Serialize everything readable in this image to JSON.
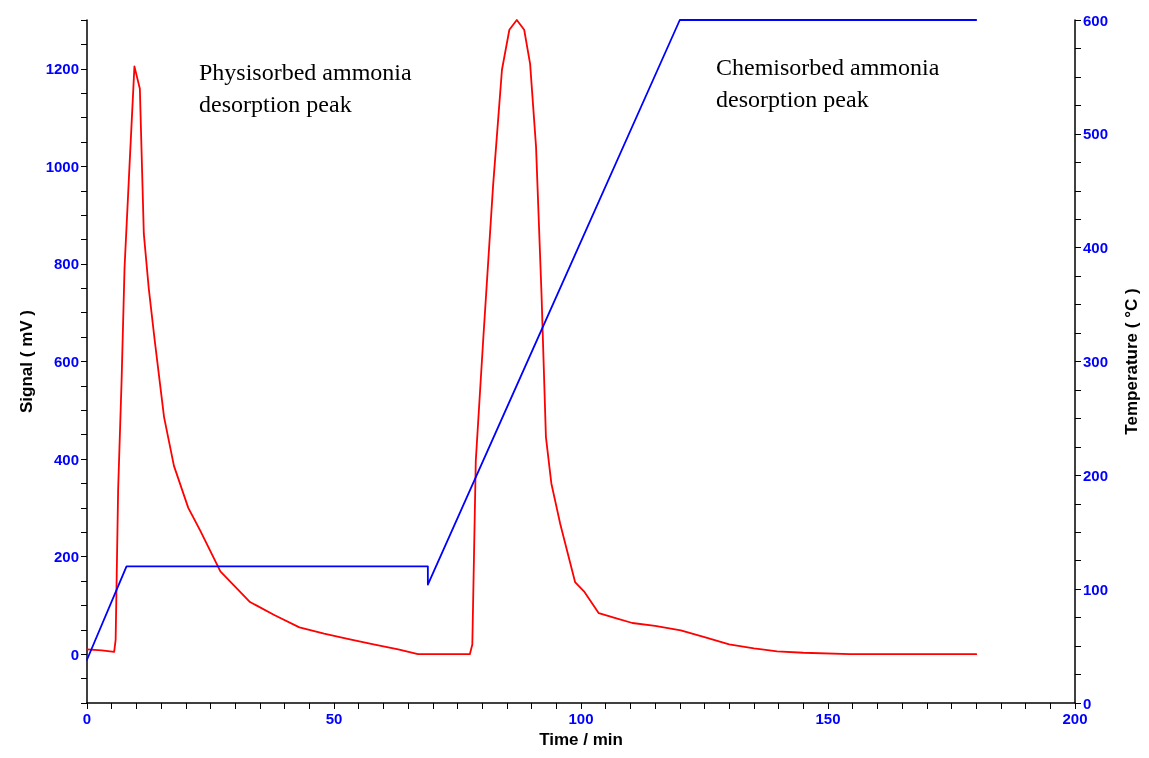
{
  "chart_data": {
    "type": "line",
    "xlabel": "Time / min",
    "ylabel": "Signal ( mV )",
    "y2label": "Temperature ( °C )",
    "xlim": [
      0,
      200
    ],
    "ylim": [
      -100,
      1300
    ],
    "y2lim": [
      0,
      600
    ],
    "xticks": [
      0,
      {
        "value": 5,
        "label": null
      },
      {
        "value": 10,
        "label": null
      },
      {
        "value": 15,
        "label": null
      },
      {
        "value": 20,
        "label": null
      },
      {
        "value": 25,
        "label": null
      },
      {
        "value": 30,
        "label": null
      },
      {
        "value": 35,
        "label": null
      },
      {
        "value": 40,
        "label": null
      },
      {
        "value": 45,
        "label": null
      },
      50,
      {
        "value": 55,
        "label": null
      },
      {
        "value": 60,
        "label": null
      },
      {
        "value": 65,
        "label": null
      },
      {
        "value": 70,
        "label": null
      },
      {
        "value": 75,
        "label": null
      },
      {
        "value": 80,
        "label": null
      },
      {
        "value": 85,
        "label": null
      },
      {
        "value": 90,
        "label": null
      },
      {
        "value": 95,
        "label": null
      },
      100,
      {
        "value": 105,
        "label": null
      },
      {
        "value": 110,
        "label": null
      },
      {
        "value": 115,
        "label": null
      },
      {
        "value": 120,
        "label": null
      },
      {
        "value": 125,
        "label": null
      },
      {
        "value": 130,
        "label": null
      },
      {
        "value": 135,
        "label": null
      },
      {
        "value": 140,
        "label": null
      },
      {
        "value": 145,
        "label": null
      },
      150,
      {
        "value": 155,
        "label": null
      },
      {
        "value": 160,
        "label": null
      },
      {
        "value": 165,
        "label": null
      },
      {
        "value": 170,
        "label": null
      },
      {
        "value": 175,
        "label": null
      },
      {
        "value": 180,
        "label": null
      },
      {
        "value": 185,
        "label": null
      },
      {
        "value": 190,
        "label": null
      },
      {
        "value": 195,
        "label": null
      },
      200
    ],
    "yticks": [
      {
        "value": -100,
        "label": null
      },
      {
        "value": -50,
        "label": null
      },
      0,
      {
        "value": 50,
        "label": null
      },
      {
        "value": 100,
        "label": null
      },
      {
        "value": 150,
        "label": null
      },
      200,
      {
        "value": 250,
        "label": null
      },
      {
        "value": 300,
        "label": null
      },
      {
        "value": 350,
        "label": null
      },
      400,
      {
        "value": 450,
        "label": null
      },
      {
        "value": 500,
        "label": null
      },
      {
        "value": 550,
        "label": null
      },
      600,
      {
        "value": 650,
        "label": null
      },
      {
        "value": 700,
        "label": null
      },
      {
        "value": 750,
        "label": null
      },
      800,
      {
        "value": 850,
        "label": null
      },
      {
        "value": 900,
        "label": null
      },
      {
        "value": 950,
        "label": null
      },
      1000,
      {
        "value": 1050,
        "label": null
      },
      {
        "value": 1100,
        "label": null
      },
      {
        "value": 1150,
        "label": null
      },
      1200,
      {
        "value": 1250,
        "label": null
      },
      {
        "value": 1300,
        "label": null
      }
    ],
    "y2ticks": [
      0,
      {
        "value": 25,
        "label": null
      },
      {
        "value": 50,
        "label": null
      },
      {
        "value": 75,
        "label": null
      },
      100,
      {
        "value": 125,
        "label": null
      },
      {
        "value": 150,
        "label": null
      },
      {
        "value": 175,
        "label": null
      },
      200,
      {
        "value": 225,
        "label": null
      },
      {
        "value": 250,
        "label": null
      },
      {
        "value": 275,
        "label": null
      },
      300,
      {
        "value": 325,
        "label": null
      },
      {
        "value": 350,
        "label": null
      },
      {
        "value": 375,
        "label": null
      },
      400,
      {
        "value": 425,
        "label": null
      },
      {
        "value": 450,
        "label": null
      },
      {
        "value": 475,
        "label": null
      },
      500,
      {
        "value": 525,
        "label": null
      },
      {
        "value": 550,
        "label": null
      },
      {
        "value": 575,
        "label": null
      },
      600
    ],
    "grid": false,
    "marker": "none",
    "line_style": "solid",
    "series": [
      {
        "color": "#ff0000",
        "x": [
          0,
          3,
          5.5,
          5.8,
          6.3,
          7,
          7.6,
          8.6,
          9.6,
          10.7,
          11.5,
          12.5,
          13.7,
          15.6,
          17.6,
          20.5,
          22.9,
          27,
          33,
          38,
          43,
          48,
          53,
          58,
          63,
          67,
          72,
          77.5,
          78,
          78.7,
          80.2,
          82.2,
          84,
          85.5,
          87,
          88.5,
          89.7,
          90.9,
          92,
          92.9,
          94,
          95.8,
          98.8,
          100.6,
          103.6,
          107,
          110.4,
          115,
          120.2,
          125,
          130,
          135,
          139.7,
          145,
          154.5,
          165,
          180
        ],
        "values": [
          10,
          8,
          5,
          30,
          336,
          560,
          792,
          1000,
          1205,
          1159,
          862,
          750,
          644,
          486,
          386,
          300,
          254,
          170,
          107,
          80,
          55,
          42,
          31,
          20,
          10,
          0,
          0,
          0,
          20,
          396,
          644,
          960,
          1198,
          1280,
          1300,
          1280,
          1210,
          1040,
          740,
          445,
          350,
          267,
          148,
          129,
          84,
          74,
          64,
          58,
          49,
          35,
          20,
          12,
          6,
          3,
          0,
          0,
          0
        ]
      },
      {
        "color": "#0000ff",
        "axis": "y2",
        "x": [
          0,
          8,
          69,
          69,
          120,
          180
        ],
        "values": [
          38,
          120,
          120,
          104,
          600,
          600
        ]
      }
    ],
    "annotations": [
      "Physisorbed ammonia desorption peak",
      "Chemisorbed ammonia desorption peak"
    ]
  }
}
